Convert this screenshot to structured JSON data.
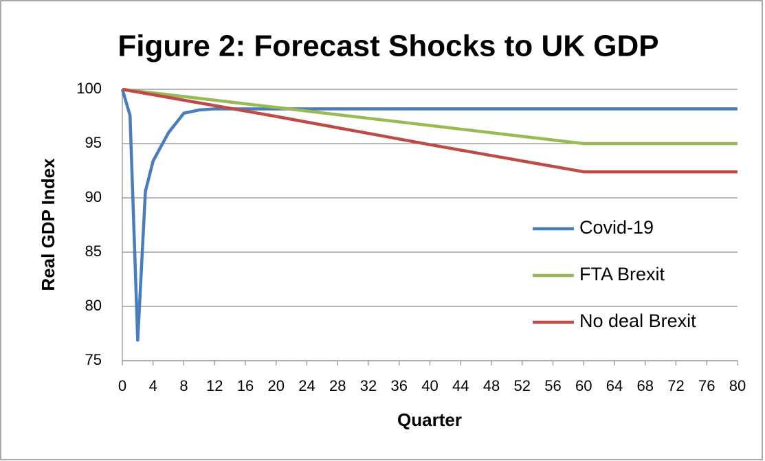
{
  "chart_data": {
    "type": "line",
    "title": "Figure 2: Forecast Shocks to UK GDP",
    "x_label": "Quarter",
    "y_label": "Real GDP Index",
    "xlim": [
      0,
      80
    ],
    "xticks": [
      0,
      4,
      8,
      12,
      16,
      20,
      24,
      28,
      32,
      36,
      40,
      44,
      48,
      52,
      56,
      60,
      64,
      68,
      72,
      76,
      80
    ],
    "ylim": [
      75,
      100
    ],
    "yticks": [
      75,
      80,
      85,
      90,
      95,
      100
    ],
    "grid": true,
    "legend": "right",
    "series": [
      {
        "name": "Covid-19",
        "color": "#4a7ebb",
        "x": [
          0,
          1,
          2,
          3,
          4,
          6,
          8,
          10,
          12,
          80
        ],
        "values": [
          100,
          97.6,
          76.9,
          90.6,
          93.4,
          96.0,
          97.8,
          98.1,
          98.2,
          98.2
        ]
      },
      {
        "name": "FTA Brexit",
        "color": "#98b954",
        "x": [
          0,
          60,
          80
        ],
        "values": [
          100,
          95,
          95
        ]
      },
      {
        "name": "No deal Brexit",
        "color": "#be4b48",
        "x": [
          0,
          20,
          40,
          60,
          80
        ],
        "values": [
          100,
          97.5,
          94.9,
          92.4,
          92.4
        ]
      }
    ]
  }
}
